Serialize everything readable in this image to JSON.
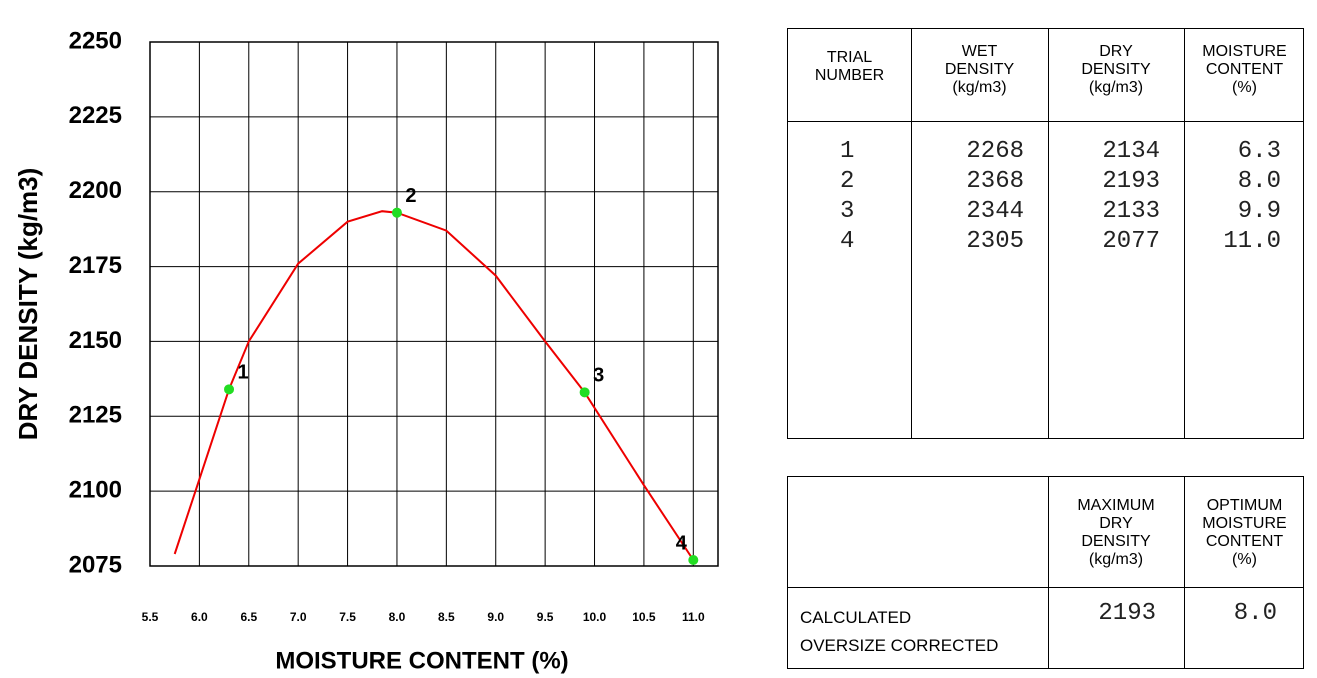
{
  "chart_data": {
    "type": "scatter",
    "ylabel": "DRY DENSITY (kg/m3)",
    "xlabel": "MOISTURE CONTENT (%)",
    "x": [
      6.3,
      8.0,
      9.9,
      11.0
    ],
    "values": [
      2134,
      2193,
      2133,
      2077
    ],
    "point_labels": [
      "1",
      "2",
      "3",
      "4"
    ],
    "color": "#22dd22",
    "fit": {
      "color": "#ee0000",
      "x": [
        5.75,
        6.0,
        6.3,
        6.5,
        7.0,
        7.5,
        7.85,
        8.0,
        8.5,
        9.0,
        9.5,
        9.9,
        10.5,
        11.0
      ],
      "values": [
        2079,
        2104,
        2134,
        2150,
        2176,
        2190,
        2193.5,
        2193,
        2187,
        2172,
        2150,
        2133,
        2102,
        2077
      ]
    },
    "xlim": [
      5.5,
      11.25
    ],
    "ylim": [
      2075,
      2250
    ],
    "xticks": [
      5.5,
      {
        "value": 6,
        "label": "6.0"
      },
      6.5,
      {
        "value": 7,
        "label": "7.0"
      },
      7.5,
      {
        "value": 8,
        "label": "8.0"
      },
      8.5,
      {
        "value": 9,
        "label": "9.0"
      },
      9.5,
      {
        "value": 10,
        "label": "10.0"
      },
      10.5,
      {
        "value": 11,
        "label": "11.0"
      }
    ],
    "yticks": [
      2075,
      2100,
      2125,
      2150,
      2175,
      2200,
      2225,
      2250
    ],
    "grid": true
  },
  "trials_table": {
    "header": [
      [
        "TRIAL",
        "NUMBER"
      ],
      [
        "WET",
        "DENSITY",
        "(kg/m3)"
      ],
      [
        "DRY",
        "DENSITY",
        "(kg/m3)"
      ],
      [
        "MOISTURE",
        "CONTENT",
        "(%)"
      ]
    ],
    "rows": [
      [
        "1",
        "2268",
        "2134",
        "6.3"
      ],
      [
        "2",
        "2368",
        "2193",
        "8.0"
      ],
      [
        "3",
        "2344",
        "2133",
        "9.9"
      ],
      [
        "4",
        "2305",
        "2077",
        "11.0"
      ]
    ]
  },
  "summary_table": {
    "header": [
      [
        "MAXIMUM",
        "DRY",
        "DENSITY",
        "(kg/m3)"
      ],
      [
        "OPTIMUM",
        "MOISTURE",
        "CONTENT",
        "(%)"
      ]
    ],
    "row_labels": [
      "CALCULATED",
      "OVERSIZE CORRECTED"
    ],
    "values": [
      "2193",
      "8.0"
    ]
  }
}
